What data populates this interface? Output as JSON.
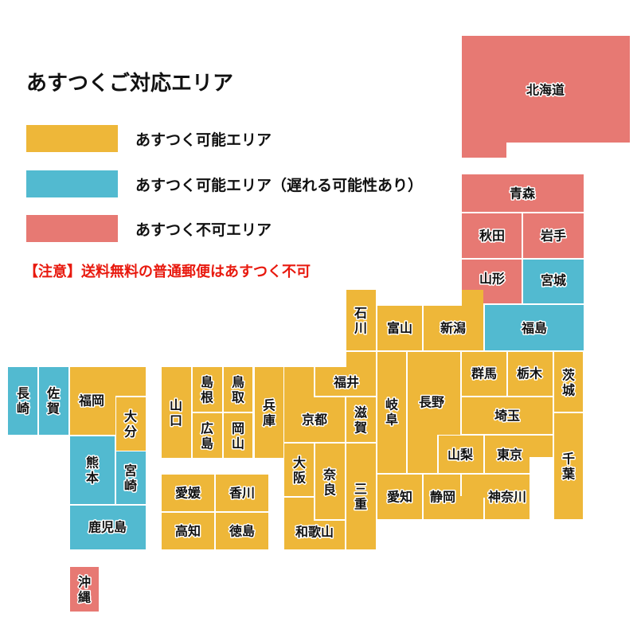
{
  "colors": {
    "available": "#EEB739",
    "delayed": "#52BAD0",
    "unavailable": "#E77973"
  },
  "legend": {
    "title": "あすつくご対応エリア",
    "items": [
      {
        "status": "available",
        "label": "あすつく可能エリア"
      },
      {
        "status": "delayed",
        "label": "あすつく可能エリア（遅れる可能性あり）"
      },
      {
        "status": "unavailable",
        "label": "あすつく不可エリア"
      }
    ],
    "note": "【注意】送料無料の普通郵便はあすつく不可"
  },
  "prefectures": [
    {
      "name": "北海道",
      "status": "unavailable"
    },
    {
      "name": "青森",
      "status": "unavailable"
    },
    {
      "name": "秋田",
      "status": "unavailable"
    },
    {
      "name": "岩手",
      "status": "unavailable"
    },
    {
      "name": "山形",
      "status": "unavailable"
    },
    {
      "name": "宮城",
      "status": "delayed"
    },
    {
      "name": "福島",
      "status": "delayed"
    },
    {
      "name": "石川",
      "status": "available"
    },
    {
      "name": "富山",
      "status": "available"
    },
    {
      "name": "新潟",
      "status": "available"
    },
    {
      "name": "福井",
      "status": "available"
    },
    {
      "name": "京都",
      "status": "available"
    },
    {
      "name": "兵庫",
      "status": "available"
    },
    {
      "name": "滋賀",
      "status": "available"
    },
    {
      "name": "大阪",
      "status": "available"
    },
    {
      "name": "奈良",
      "status": "available"
    },
    {
      "name": "和歌山",
      "status": "available"
    },
    {
      "name": "三重",
      "status": "available"
    },
    {
      "name": "岐阜",
      "status": "available"
    },
    {
      "name": "長野",
      "status": "available"
    },
    {
      "name": "群馬",
      "status": "available"
    },
    {
      "name": "栃木",
      "status": "available"
    },
    {
      "name": "茨城",
      "status": "available"
    },
    {
      "name": "埼玉",
      "status": "available"
    },
    {
      "name": "山梨",
      "status": "available"
    },
    {
      "name": "東京",
      "status": "available"
    },
    {
      "name": "千葉",
      "status": "available"
    },
    {
      "name": "愛知",
      "status": "available"
    },
    {
      "name": "静岡",
      "status": "available"
    },
    {
      "name": "神奈川",
      "status": "available"
    },
    {
      "name": "長崎",
      "status": "delayed"
    },
    {
      "name": "佐賀",
      "status": "delayed"
    },
    {
      "name": "福岡",
      "status": "available"
    },
    {
      "name": "大分",
      "status": "available"
    },
    {
      "name": "熊本",
      "status": "delayed"
    },
    {
      "name": "宮崎",
      "status": "delayed"
    },
    {
      "name": "鹿児島",
      "status": "delayed"
    },
    {
      "name": "沖縄",
      "status": "unavailable"
    },
    {
      "name": "山口",
      "status": "available"
    },
    {
      "name": "島根",
      "status": "available"
    },
    {
      "name": "鳥取",
      "status": "available"
    },
    {
      "name": "広島",
      "status": "available"
    },
    {
      "name": "岡山",
      "status": "available"
    },
    {
      "name": "愛媛",
      "status": "available"
    },
    {
      "name": "香川",
      "status": "available"
    },
    {
      "name": "高知",
      "status": "available"
    },
    {
      "name": "徳島",
      "status": "available"
    }
  ]
}
